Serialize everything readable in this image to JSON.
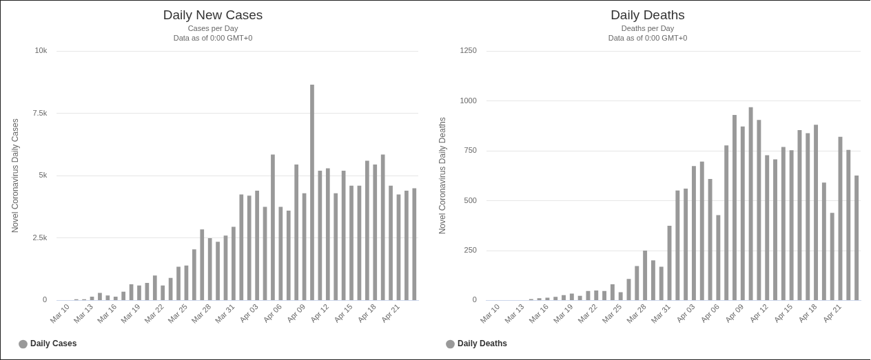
{
  "chart_data": [
    {
      "type": "bar",
      "title": "Daily New Cases",
      "subtitle": "Cases per Day\nData as of 0:00 GMT+0",
      "ylabel": "Novel Coronavirus Daily Cases",
      "categories": [
        null,
        "Mar 10",
        null,
        null,
        "Mar 13",
        null,
        null,
        "Mar 16",
        null,
        null,
        "Mar 19",
        null,
        null,
        "Mar 22",
        null,
        null,
        "Mar 25",
        null,
        null,
        "Mar 28",
        null,
        null,
        "Mar 31",
        null,
        null,
        "Apr 03",
        null,
        null,
        "Apr 06",
        null,
        null,
        "Apr 09",
        null,
        null,
        "Apr 12",
        null,
        null,
        "Apr 15",
        null,
        null,
        "Apr 18",
        null,
        null,
        "Apr 21",
        null,
        null
      ],
      "series": [
        {
          "name": "Daily Cases",
          "color": "#999999",
          "values": [
            0,
            0,
            50,
            50,
            150,
            300,
            200,
            150,
            350,
            650,
            600,
            700,
            1000,
            600,
            900,
            1350,
            1400,
            2050,
            2850,
            2500,
            2350,
            2600,
            2950,
            4250,
            4200,
            4400,
            3750,
            5850,
            3750,
            3600,
            5450,
            4300,
            8650,
            5200,
            5300,
            4300,
            5200,
            4600,
            4600,
            5600,
            5450,
            5850,
            4600,
            4250,
            4400,
            4500
          ]
        }
      ],
      "ylim": [
        0,
        10000
      ],
      "yticks": [
        {
          "value": 0,
          "label": "0"
        },
        {
          "value": 2500,
          "label": "2.5k"
        },
        {
          "value": 5000,
          "label": "5k"
        },
        {
          "value": 7500,
          "label": "7.5k"
        },
        {
          "value": 10000,
          "label": "10k"
        }
      ],
      "grid": "y",
      "legend": "bottom left"
    },
    {
      "type": "bar",
      "title": "Daily Deaths",
      "subtitle": "Deaths per Day\nData as of 0:00 GMT+0",
      "ylabel": "Novel Coronavirus Daily Deaths",
      "categories": [
        null,
        "Mar 10",
        null,
        null,
        "Mar 13",
        null,
        null,
        "Mar 16",
        null,
        null,
        "Mar 19",
        null,
        null,
        "Mar 22",
        null,
        null,
        "Mar 25",
        null,
        null,
        "Mar 28",
        null,
        null,
        "Mar 31",
        null,
        null,
        "Apr 03",
        null,
        null,
        "Apr 06",
        null,
        null,
        "Apr 09",
        null,
        null,
        "Apr 12",
        null,
        null,
        "Apr 15",
        null,
        null,
        "Apr 18",
        null,
        null,
        "Apr 21",
        null,
        null
      ],
      "series": [
        {
          "name": "Daily Deaths",
          "color": "#999999",
          "values": [
            0,
            0,
            0,
            null,
            null,
            7,
            11,
            14,
            18,
            27,
            34,
            23,
            47,
            50,
            47,
            81,
            41,
            108,
            172,
            250,
            201,
            169,
            374,
            551,
            561,
            674,
            696,
            609,
            428,
            777,
            930,
            872,
            969,
            905,
            728,
            707,
            769,
            753,
            854,
            838,
            881,
            591,
            439,
            820,
            755,
            626
          ]
        }
      ],
      "ylim": [
        0,
        1250
      ],
      "yticks": [
        0,
        250,
        500,
        750,
        1000,
        1250
      ],
      "grid": "y",
      "legend": "bottom left"
    }
  ]
}
